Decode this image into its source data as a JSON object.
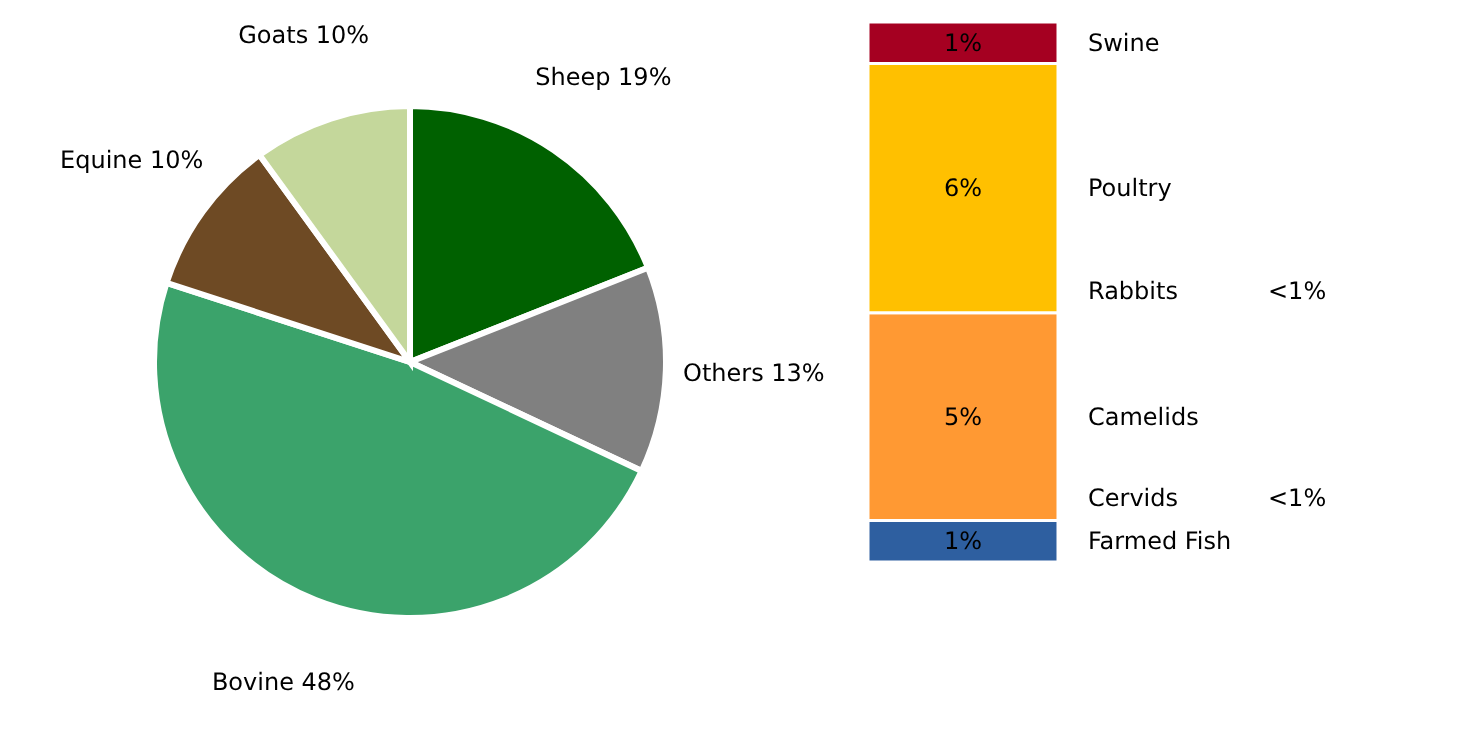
{
  "chart_data": [
    {
      "type": "pie",
      "categories": [
        "Sheep",
        "Others",
        "Bovine",
        "Equine",
        "Goats"
      ],
      "values": [
        19,
        13,
        48,
        10,
        10
      ],
      "value_labels": [
        "19%",
        "13%",
        "48%",
        "10%",
        "10%"
      ],
      "colors": [
        "#006100",
        "#808080",
        "#3ba36b",
        "#6e4a24",
        "#c4d79b"
      ]
    },
    {
      "type": "bar",
      "stacked": true,
      "categories": [
        null
      ],
      "series": [
        {
          "name": "Farmed Fish",
          "color": "#2e5fa0",
          "values": [
            1
          ],
          "value_labels": [
            "1%"
          ]
        },
        {
          "name": "Cervids",
          "values": [
            null
          ],
          "value_labels": [
            "<1%"
          ]
        },
        {
          "name": "Camelids",
          "color": "#ff9933",
          "values": [
            5
          ],
          "value_labels": [
            "5%"
          ]
        },
        {
          "name": "Rabbits",
          "values": [
            null
          ],
          "value_labels": [
            "<1%"
          ]
        },
        {
          "name": "Poultry",
          "color": "#ffc000",
          "values": [
            6
          ],
          "value_labels": [
            "6%"
          ]
        },
        {
          "name": "Swine",
          "color": "#a50021",
          "values": [
            1
          ],
          "value_labels": [
            "1%"
          ]
        }
      ]
    }
  ]
}
